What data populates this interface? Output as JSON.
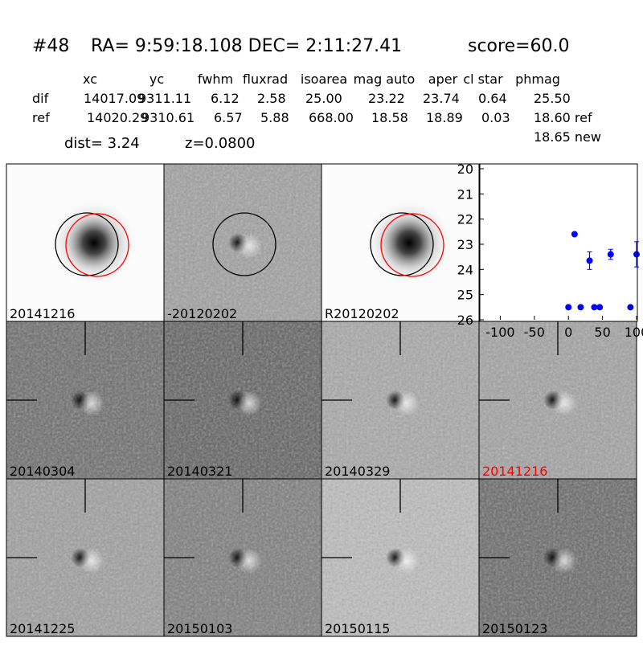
{
  "header": {
    "id": "#48",
    "coords": "RA= 9:59:18.108 DEC= 2:11:27.41",
    "score": "score=60.0"
  },
  "table": {
    "columns": [
      "xc",
      "yc",
      "fwhm",
      "fluxrad",
      "isoarea",
      "mag auto",
      "aper",
      "cl star",
      "phmag"
    ],
    "rows": [
      [
        "dif",
        "14017.09",
        "9311.11",
        "6.12",
        "2.58",
        "25.00",
        "23.22",
        "23.74",
        "0.64",
        "25.50"
      ],
      [
        "ref",
        "14020.29",
        "9310.61",
        "6.57",
        "5.88",
        "668.00",
        "18.58",
        "18.89",
        "0.03",
        "18.60 ref"
      ]
    ],
    "extra": "18.65 new",
    "dist": "dist=  3.24",
    "z": "z=0.0800"
  },
  "stamps": [
    {
      "label": "20141216",
      "circles": "both"
    },
    {
      "label": "-20120202",
      "circles": "black"
    },
    {
      "label": "R20120202",
      "circles": "both"
    },
    {
      "label": "20140304"
    },
    {
      "label": "20140321"
    },
    {
      "label": "20140329"
    },
    {
      "label": "20141216",
      "label_color": "#ff0000"
    },
    {
      "label": "20141225"
    },
    {
      "label": "20150103"
    },
    {
      "label": "20150115"
    },
    {
      "label": "20150123"
    }
  ],
  "chart_data": {
    "type": "scatter",
    "color": "#0000ff",
    "x": [
      0,
      9,
      18,
      31,
      38,
      46,
      62,
      91,
      100
    ],
    "values": [
      25.5,
      22.6,
      25.5,
      23.65,
      25.5,
      25.5,
      23.4,
      25.5,
      23.4
    ],
    "errors": [
      null,
      0.05,
      null,
      0.35,
      null,
      null,
      0.2,
      null,
      0.5
    ],
    "xlim": [
      -130,
      100
    ],
    "ylim": [
      20,
      26
    ],
    "y_inverted": true,
    "xticks": [
      -100,
      -50,
      0,
      50,
      100
    ],
    "yticks": [
      20,
      21,
      22,
      23,
      24,
      25,
      26
    ]
  }
}
